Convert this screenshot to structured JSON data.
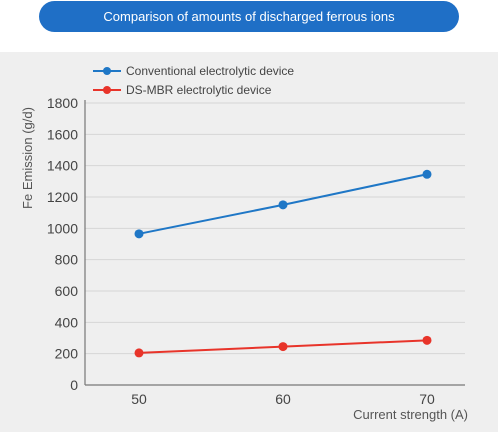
{
  "chart_data": {
    "type": "line",
    "title": "Comparison of amounts of discharged ferrous ions",
    "xlabel": "Current strength (A)",
    "ylabel": "Fe Emission (g/d)",
    "categories": [
      "50",
      "60",
      "70"
    ],
    "x": [
      50,
      60,
      70
    ],
    "ylim": [
      0,
      1800
    ],
    "yticks": [
      0,
      200,
      400,
      600,
      800,
      1000,
      1200,
      1400,
      1600,
      1800
    ],
    "grid": true,
    "legend_position": "top-left",
    "series": [
      {
        "name": "Conventional electrolytic device",
        "color": "#1f77c6",
        "values": [
          965,
          1150,
          1345
        ]
      },
      {
        "name": "DS-MBR electrolytic device",
        "color": "#e8342a",
        "values": [
          205,
          245,
          285
        ]
      }
    ]
  },
  "colors": {
    "title_bg": "#1f6fc6",
    "panel_bg": "#efefef",
    "grid": "#d6d6d6",
    "axis": "#777777"
  }
}
